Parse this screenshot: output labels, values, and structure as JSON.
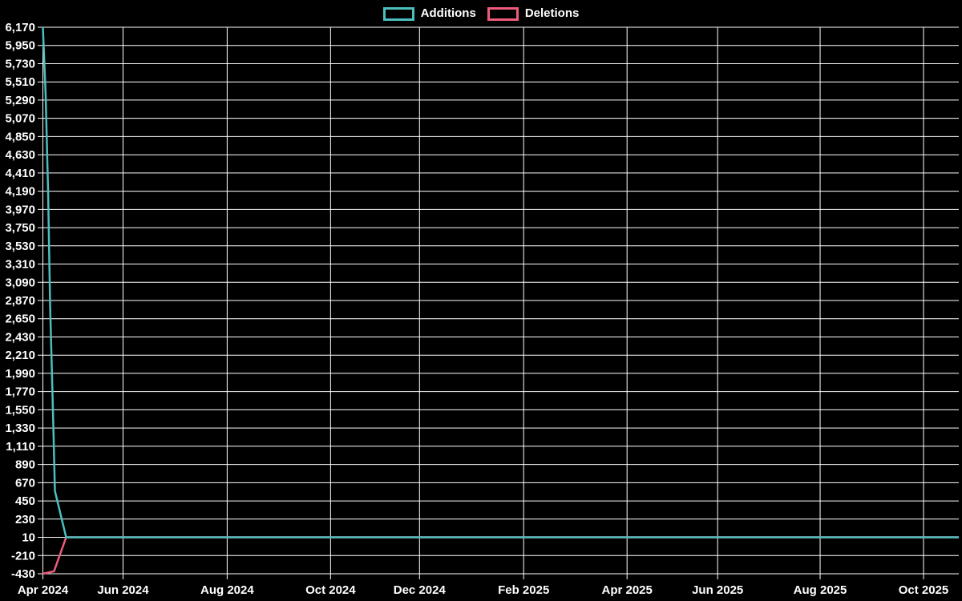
{
  "page": {
    "background_color": "#000000",
    "text_color": "#ffffff",
    "grid_color": "#ffffff"
  },
  "legend": {
    "position": "top-center",
    "items": [
      {
        "label": "Additions",
        "color": "#4dbebe"
      },
      {
        "label": "Deletions",
        "color": "#ee5c7b"
      }
    ]
  },
  "chart_data": {
    "type": "line",
    "title": "",
    "xlabel": "",
    "ylabel": "",
    "grid": true,
    "legend_position": "top",
    "background": "#000000",
    "grid_color": "#ffffff",
    "text_color": "#ffffff",
    "ylim": [
      -430,
      6170
    ],
    "y_step": 220,
    "y_tick_labels": [
      "6,170",
      "5,950",
      "5,730",
      "5,510",
      "5,290",
      "5,070",
      "4,850",
      "4,630",
      "4,410",
      "4,190",
      "3,970",
      "3,750",
      "3,530",
      "3,310",
      "3,090",
      "2,870",
      "2,650",
      "2,430",
      "2,210",
      "1,990",
      "1,770",
      "1,550",
      "1,330",
      "1,110",
      "890",
      "670",
      "450",
      "230",
      "10",
      "-210",
      "-430"
    ],
    "x_ticks": [
      {
        "f": 0.0,
        "label": "Apr 2024"
      },
      {
        "f": 0.0875,
        "label": "Jun 2024"
      },
      {
        "f": 0.2012,
        "label": "Aug 2024"
      },
      {
        "f": 0.3141,
        "label": "Oct 2024"
      },
      {
        "f": 0.4112,
        "label": "Dec 2024"
      },
      {
        "f": 0.5249,
        "label": "Feb 2025"
      },
      {
        "f": 0.6378,
        "label": "Apr 2025"
      },
      {
        "f": 0.7367,
        "label": "Jun 2025"
      },
      {
        "f": 0.8486,
        "label": "Aug 2025"
      },
      {
        "f": 0.9615,
        "label": "Oct 2025"
      }
    ],
    "series": [
      {
        "name": "Additions",
        "color": "#4dbebe",
        "points": [
          [
            0.0,
            6170
          ],
          [
            0.0031,
            5340
          ],
          [
            0.0057,
            4180
          ],
          [
            0.0079,
            2820
          ],
          [
            0.0114,
            1370
          ],
          [
            0.0131,
            570
          ],
          [
            0.0254,
            10
          ],
          [
            1.0,
            10
          ]
        ]
      },
      {
        "name": "Deletions",
        "color": "#ee5c7b",
        "points": [
          [
            0.0,
            -430
          ],
          [
            0.0122,
            -400
          ],
          [
            0.0254,
            10
          ],
          [
            1.0,
            10
          ]
        ]
      }
    ]
  }
}
